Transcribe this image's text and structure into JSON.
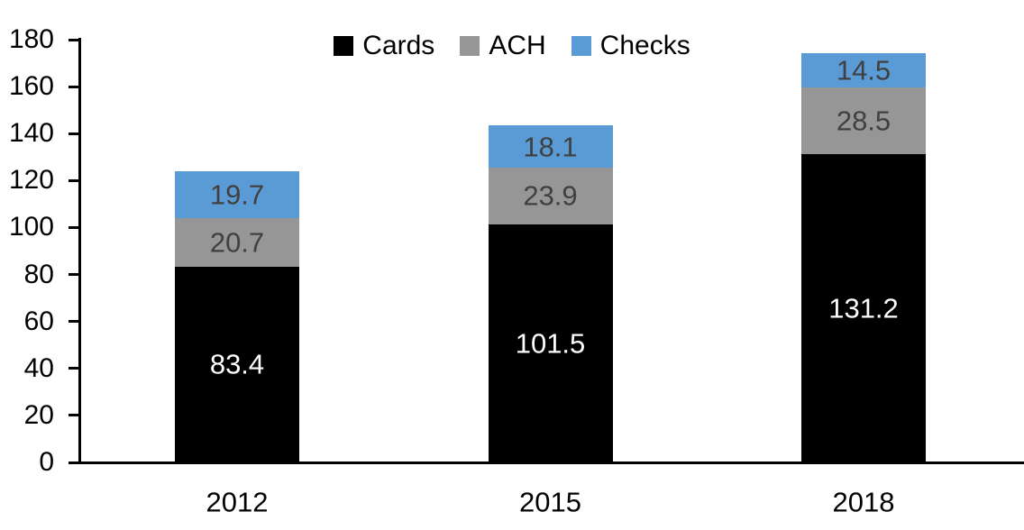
{
  "chart_data": {
    "type": "bar",
    "stacked": true,
    "title": "",
    "xlabel": "",
    "ylabel": "",
    "categories": [
      "2012",
      "2015",
      "2018"
    ],
    "series": [
      {
        "name": "Cards",
        "color": "#000000",
        "label_color": "#ffffff",
        "values": [
          83.4,
          101.5,
          131.2
        ]
      },
      {
        "name": "ACH",
        "color": "#969696",
        "label_color": "#404040",
        "values": [
          20.7,
          23.9,
          28.5
        ]
      },
      {
        "name": "Checks",
        "color": "#5B9BD5",
        "label_color": "#404040",
        "values": [
          19.7,
          18.1,
          14.5
        ]
      }
    ],
    "value_label_decimals": 1,
    "ylim": [
      0,
      180
    ],
    "yticks": [
      0,
      20,
      40,
      60,
      80,
      100,
      120,
      140,
      160,
      180
    ],
    "grid": false,
    "legend": {
      "position": "top-center",
      "entries": [
        "Cards",
        "ACH",
        "Checks"
      ]
    },
    "axis_color": "#000000",
    "background_color": "#ffffff"
  }
}
